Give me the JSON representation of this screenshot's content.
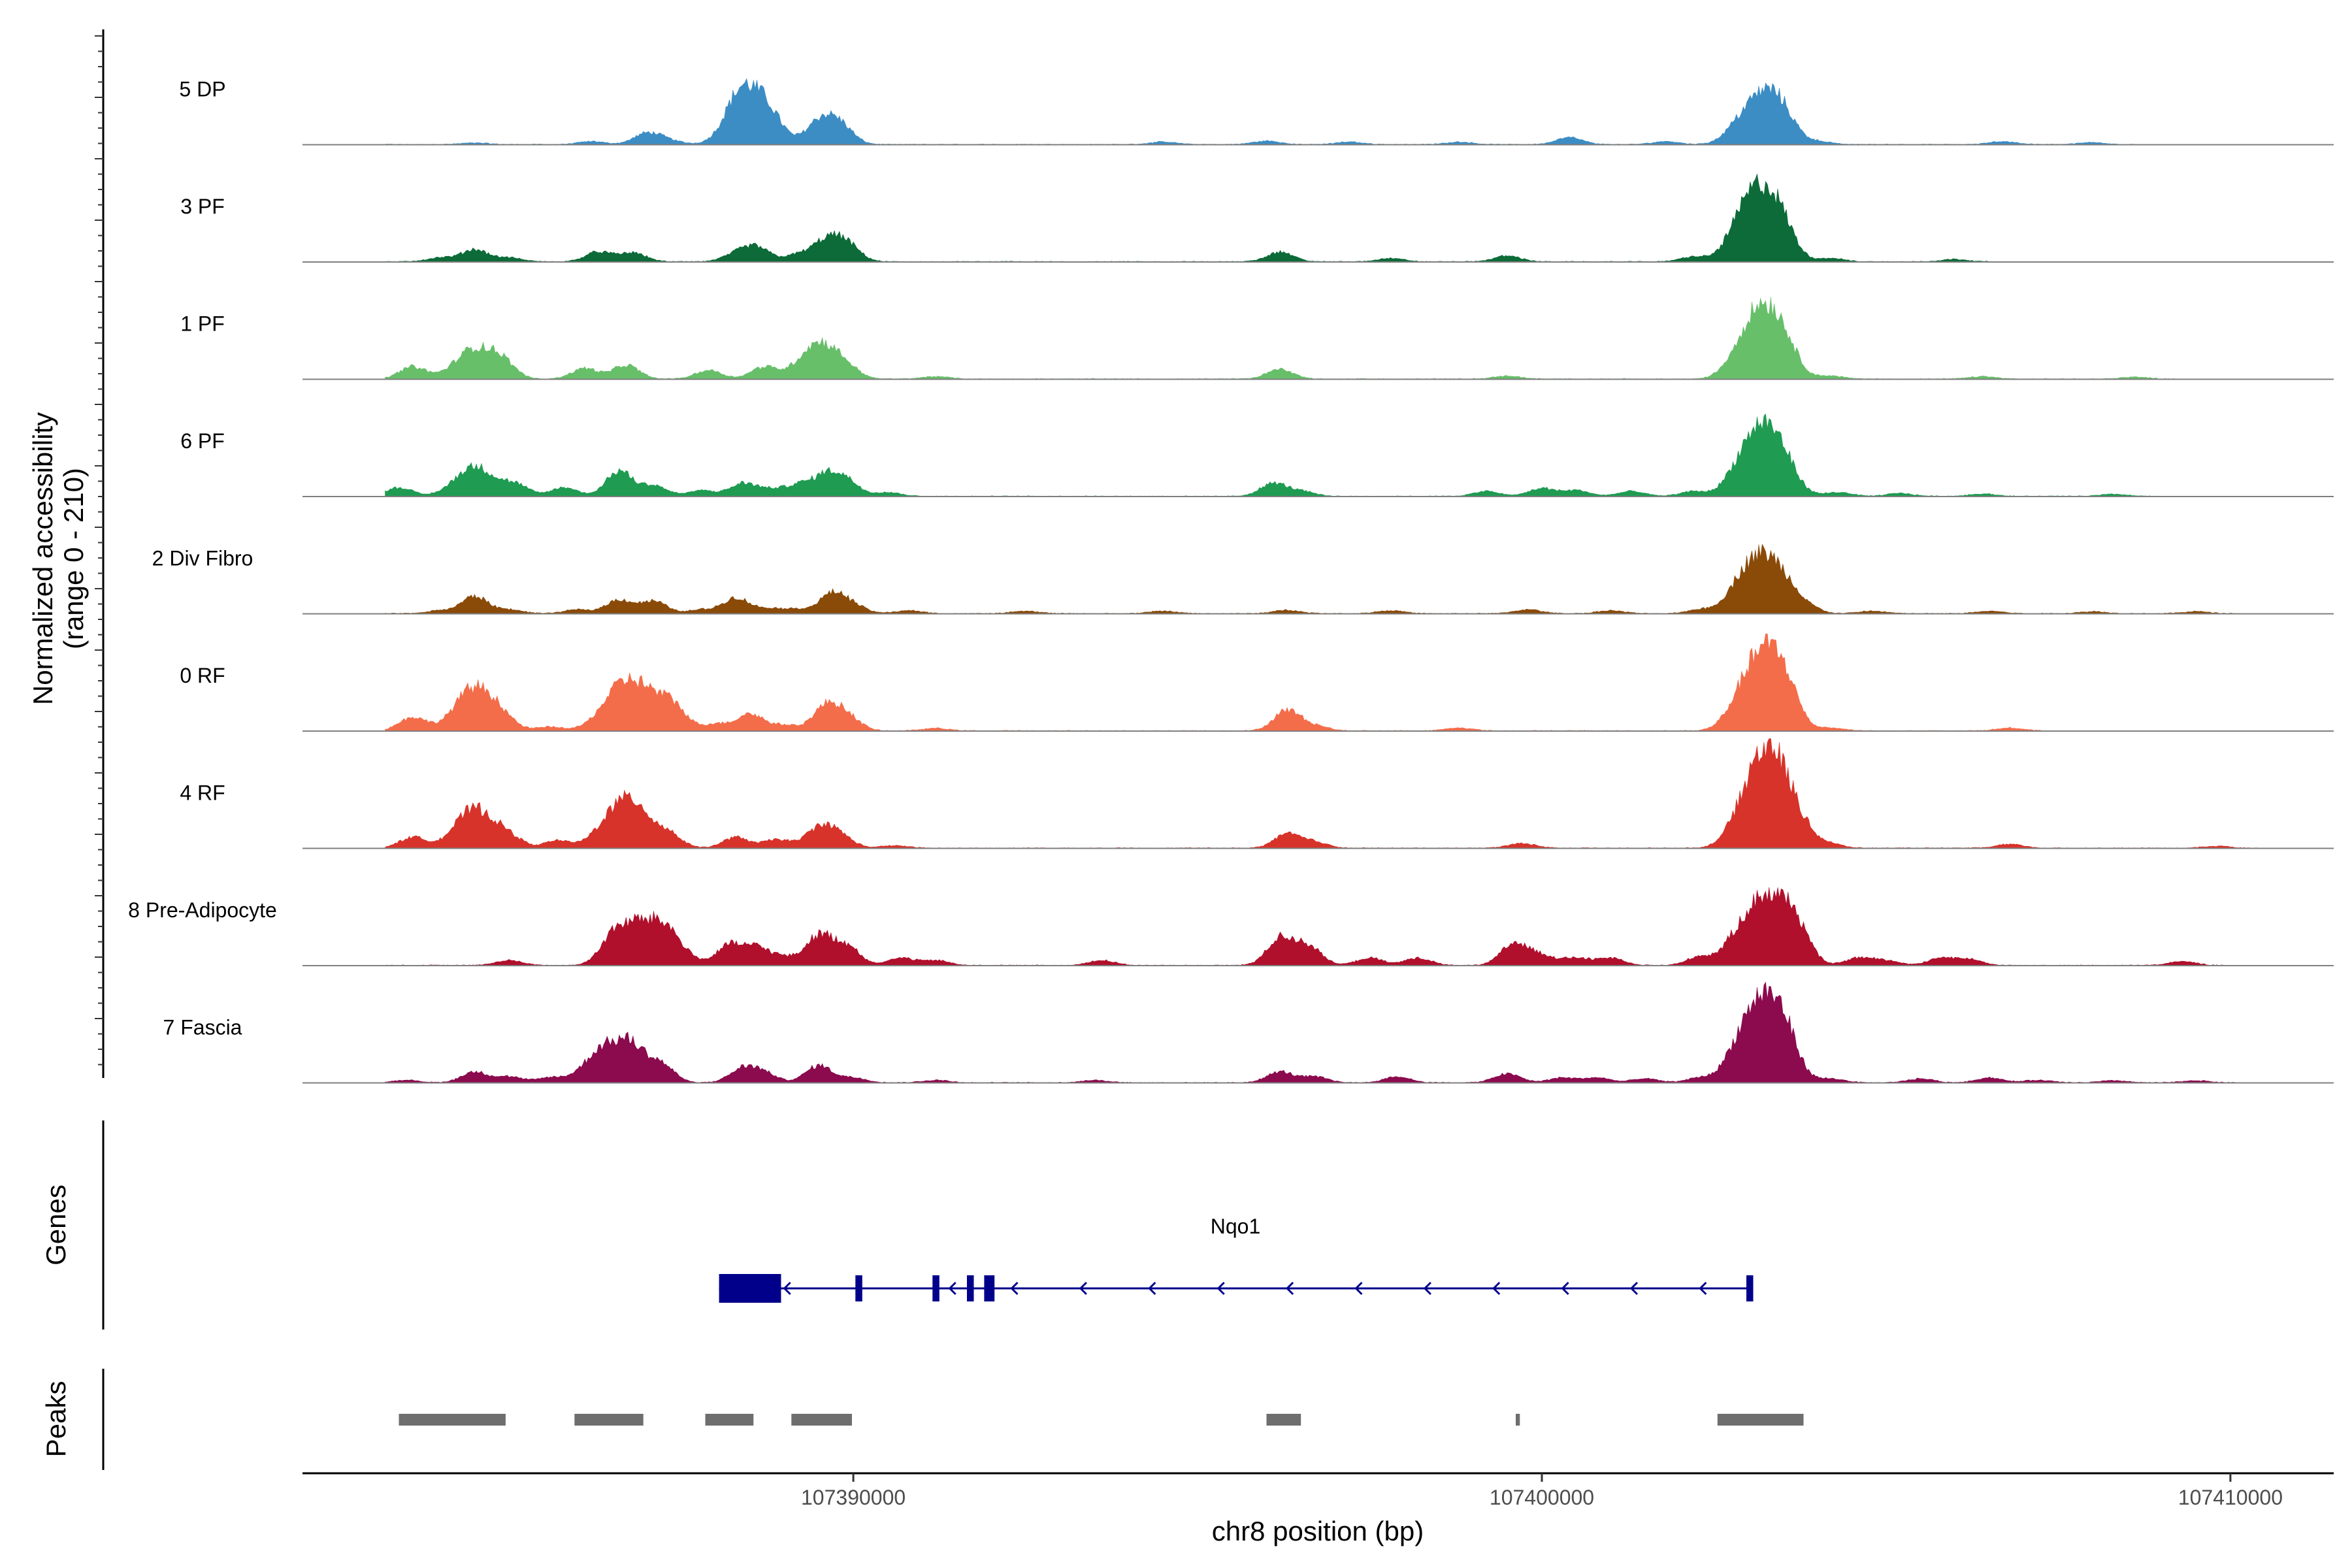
{
  "chart_data": {
    "type": "coverage-track",
    "chromosome": "chr8",
    "xlabel": "chr8 position (bp)",
    "xlim": [
      107382000,
      107411500
    ],
    "x_ticks": [
      107390000,
      107400000,
      107410000
    ],
    "x_tick_labels": [
      "107390000",
      "107400000",
      "107410000"
    ],
    "ylabel_line1": "Normalized accessibility",
    "ylabel_line2": "(range 0 - 210)",
    "ylim": [
      0,
      210
    ],
    "genes_label": "Genes",
    "peaks_label": "Peaks",
    "tracks": [
      {
        "name": "5 DP",
        "color": "#3c8dc4",
        "peaks": [
          [
            107384500,
            3
          ],
          [
            107386200,
            6
          ],
          [
            107387000,
            22
          ],
          [
            107387300,
            8
          ],
          [
            107388300,
            35
          ],
          [
            107388500,
            95
          ],
          [
            107388800,
            28
          ],
          [
            107389500,
            45
          ],
          [
            107389800,
            40
          ],
          [
            107394500,
            5
          ],
          [
            107396000,
            7
          ],
          [
            107397200,
            5
          ],
          [
            107398800,
            5
          ],
          [
            107400400,
            14
          ],
          [
            107401800,
            6
          ],
          [
            107402800,
            14
          ],
          [
            107403200,
            100
          ],
          [
            107403500,
            35
          ],
          [
            107404000,
            6
          ],
          [
            107406700,
            6
          ],
          [
            107408000,
            4
          ]
        ]
      },
      {
        "name": "3 PF",
        "color": "#0c6b38",
        "peaks": [
          [
            107384000,
            8
          ],
          [
            107384500,
            25
          ],
          [
            107385000,
            8
          ],
          [
            107386300,
            20
          ],
          [
            107386800,
            18
          ],
          [
            107388300,
            15
          ],
          [
            107388600,
            28
          ],
          [
            107389200,
            14
          ],
          [
            107389600,
            40
          ],
          [
            107389900,
            35
          ],
          [
            107396200,
            20
          ],
          [
            107397800,
            7
          ],
          [
            107399500,
            12
          ],
          [
            107402200,
            10
          ],
          [
            107402800,
            18
          ],
          [
            107403150,
            150
          ],
          [
            107403500,
            42
          ],
          [
            107404200,
            7
          ],
          [
            107406000,
            5
          ]
        ]
      },
      {
        "name": "1 PF",
        "color": "#68bf6a",
        "peaks": [
          [
            107383600,
            25
          ],
          [
            107384500,
            62
          ],
          [
            107384900,
            28
          ],
          [
            107386100,
            22
          ],
          [
            107386700,
            28
          ],
          [
            107387900,
            18
          ],
          [
            107388700,
            24
          ],
          [
            107389500,
            75
          ],
          [
            107389900,
            14
          ],
          [
            107391200,
            5
          ],
          [
            107396200,
            20
          ],
          [
            107399500,
            6
          ],
          [
            107402800,
            16
          ],
          [
            107403200,
            150
          ],
          [
            107403550,
            35
          ],
          [
            107404200,
            6
          ],
          [
            107406400,
            5
          ],
          [
            107408600,
            4
          ]
        ]
      },
      {
        "name": "6 PF",
        "color": "#1f9b52",
        "peaks": [
          [
            107383400,
            18
          ],
          [
            107384500,
            62
          ],
          [
            107385100,
            22
          ],
          [
            107385800,
            18
          ],
          [
            107386600,
            52
          ],
          [
            107387100,
            22
          ],
          [
            107387800,
            12
          ],
          [
            107388400,
            26
          ],
          [
            107388800,
            12
          ],
          [
            107389200,
            22
          ],
          [
            107389600,
            40
          ],
          [
            107389900,
            30
          ],
          [
            107390500,
            8
          ],
          [
            107396100,
            26
          ],
          [
            107396500,
            10
          ],
          [
            107399200,
            10
          ],
          [
            107400000,
            16
          ],
          [
            107400500,
            12
          ],
          [
            107401300,
            10
          ],
          [
            107402200,
            10
          ],
          [
            107402800,
            20
          ],
          [
            107403200,
            145
          ],
          [
            107403550,
            30
          ],
          [
            107404300,
            8
          ],
          [
            107405200,
            6
          ],
          [
            107406400,
            5
          ],
          [
            107408300,
            4
          ]
        ]
      },
      {
        "name": "2 Div Fibro",
        "color": "#8a4a08",
        "peaks": [
          [
            107384000,
            6
          ],
          [
            107384500,
            35
          ],
          [
            107385000,
            8
          ],
          [
            107386000,
            8
          ],
          [
            107386600,
            28
          ],
          [
            107387100,
            25
          ],
          [
            107387800,
            8
          ],
          [
            107388300,
            32
          ],
          [
            107388800,
            10
          ],
          [
            107389200,
            8
          ],
          [
            107389700,
            40
          ],
          [
            107390000,
            14
          ],
          [
            107390800,
            6
          ],
          [
            107392500,
            5
          ],
          [
            107394500,
            5
          ],
          [
            107396300,
            7
          ],
          [
            107397800,
            6
          ],
          [
            107399800,
            8
          ],
          [
            107401000,
            6
          ],
          [
            107402300,
            8
          ],
          [
            107402800,
            15
          ],
          [
            107403150,
            115
          ],
          [
            107403500,
            35
          ],
          [
            107403800,
            18
          ],
          [
            107404800,
            5
          ],
          [
            107406500,
            5
          ],
          [
            107408000,
            4
          ],
          [
            107409500,
            4
          ]
        ]
      },
      {
        "name": "0 RF",
        "color": "#f46d4a",
        "peaks": [
          [
            107383600,
            28
          ],
          [
            107384500,
            90
          ],
          [
            107384900,
            18
          ],
          [
            107385600,
            8
          ],
          [
            107386600,
            75
          ],
          [
            107387000,
            62
          ],
          [
            107387400,
            38
          ],
          [
            107388000,
            14
          ],
          [
            107388500,
            35
          ],
          [
            107389000,
            12
          ],
          [
            107389600,
            48
          ],
          [
            107389900,
            30
          ],
          [
            107391200,
            5
          ],
          [
            107396300,
            42
          ],
          [
            107396700,
            10
          ],
          [
            107398800,
            6
          ],
          [
            107402800,
            18
          ],
          [
            107403200,
            160
          ],
          [
            107403550,
            60
          ],
          [
            107404200,
            6
          ],
          [
            107406800,
            6
          ]
        ]
      },
      {
        "name": "4 RF",
        "color": "#d7332a",
        "peaks": [
          [
            107383600,
            22
          ],
          [
            107384500,
            82
          ],
          [
            107385000,
            20
          ],
          [
            107385700,
            15
          ],
          [
            107386600,
            85
          ],
          [
            107386900,
            40
          ],
          [
            107387300,
            32
          ],
          [
            107388300,
            22
          ],
          [
            107388900,
            18
          ],
          [
            107389500,
            40
          ],
          [
            107389800,
            25
          ],
          [
            107390600,
            5
          ],
          [
            107396300,
            28
          ],
          [
            107396700,
            12
          ],
          [
            107399700,
            10
          ],
          [
            107402800,
            14
          ],
          [
            107403200,
            170
          ],
          [
            107403550,
            80
          ],
          [
            107404200,
            6
          ],
          [
            107406800,
            8
          ],
          [
            107409800,
            4
          ]
        ]
      },
      {
        "name": "8 Pre-Adipocyte",
        "color": "#b0102c",
        "peaks": [
          [
            107385000,
            10
          ],
          [
            107386500,
            55
          ],
          [
            107386800,
            45
          ],
          [
            107387200,
            88
          ],
          [
            107388200,
            40
          ],
          [
            107388600,
            35
          ],
          [
            107389000,
            15
          ],
          [
            107389500,
            60
          ],
          [
            107389900,
            40
          ],
          [
            107390700,
            15
          ],
          [
            107391200,
            10
          ],
          [
            107393600,
            10
          ],
          [
            107396200,
            55
          ],
          [
            107396600,
            40
          ],
          [
            107397500,
            15
          ],
          [
            107398200,
            15
          ],
          [
            107399600,
            45
          ],
          [
            107400000,
            20
          ],
          [
            107400500,
            15
          ],
          [
            107401000,
            15
          ],
          [
            107402300,
            18
          ],
          [
            107402800,
            20
          ],
          [
            107403100,
            80
          ],
          [
            107403400,
            85
          ],
          [
            107403700,
            55
          ],
          [
            107404600,
            15
          ],
          [
            107405000,
            10
          ],
          [
            107405800,
            15
          ],
          [
            107406200,
            12
          ],
          [
            107409300,
            8
          ]
        ]
      },
      {
        "name": "7 Fascia",
        "color": "#8c0a4e",
        "peaks": [
          [
            107383500,
            5
          ],
          [
            107384500,
            22
          ],
          [
            107385000,
            12
          ],
          [
            107385600,
            10
          ],
          [
            107386400,
            75
          ],
          [
            107386800,
            55
          ],
          [
            107387200,
            38
          ],
          [
            107388400,
            28
          ],
          [
            107388700,
            18
          ],
          [
            107389500,
            35
          ],
          [
            107390000,
            10
          ],
          [
            107391200,
            5
          ],
          [
            107393500,
            5
          ],
          [
            107396200,
            22
          ],
          [
            107396700,
            12
          ],
          [
            107397900,
            12
          ],
          [
            107399500,
            18
          ],
          [
            107400300,
            10
          ],
          [
            107400800,
            10
          ],
          [
            107401500,
            8
          ],
          [
            107402300,
            10
          ],
          [
            107402800,
            30
          ],
          [
            107403200,
            170
          ],
          [
            107403550,
            60
          ],
          [
            107404200,
            8
          ],
          [
            107405500,
            8
          ],
          [
            107406500,
            10
          ],
          [
            107407200,
            5
          ],
          [
            107408300,
            4
          ],
          [
            107409500,
            4
          ]
        ]
      }
    ],
    "gene": {
      "name": "Nqo1",
      "strand": "-",
      "color": "#00008b",
      "start": 107388050,
      "end": 107403050,
      "exons": [
        [
          107388050,
          107388950
        ],
        [
          107390030,
          107390130
        ],
        [
          107391150,
          107391250
        ],
        [
          107391650,
          107391750
        ],
        [
          107391900,
          107392050
        ]
      ],
      "utr_exon": [
        107402970,
        107403070
      ],
      "arrows": [
        107389000,
        107391400,
        107392300,
        107393300,
        107394300,
        107395300,
        107396300,
        107397300,
        107398300,
        107399300,
        107400300,
        107401300,
        107402300
      ]
    },
    "peaks_track": {
      "color": "#6e6e6e",
      "regions": [
        [
          107383400,
          107384950
        ],
        [
          107385950,
          107386950
        ],
        [
          107387850,
          107388550
        ],
        [
          107389100,
          107389980
        ],
        [
          107396000,
          107396500
        ],
        [
          107399620,
          107399680
        ],
        [
          107402550,
          107403800
        ]
      ]
    }
  }
}
